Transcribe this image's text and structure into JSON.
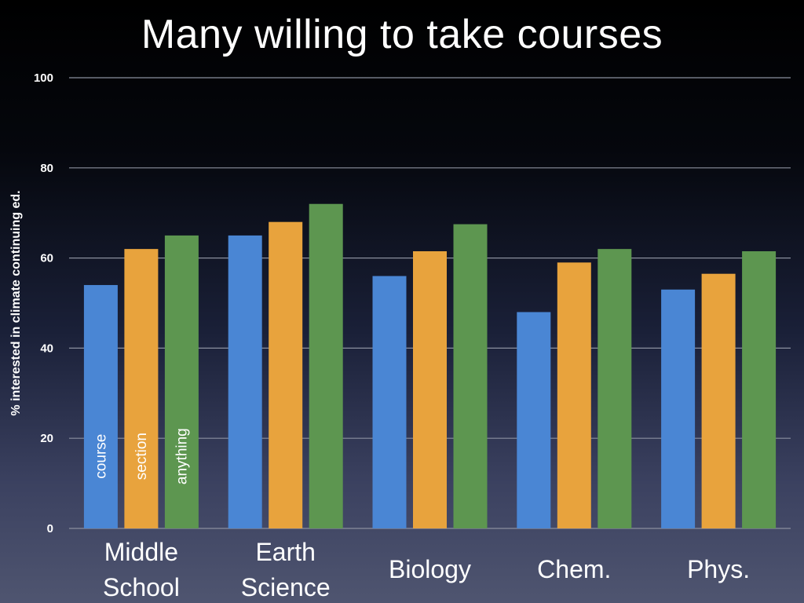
{
  "slide": {
    "title": "Many willing to take courses"
  },
  "chart_data": {
    "type": "bar",
    "title": "Many willing to take courses",
    "ylabel": "% interested in climate continuing ed.",
    "xlabel": "",
    "ylim": [
      0,
      100
    ],
    "yticks": [
      0,
      20,
      40,
      60,
      80,
      100
    ],
    "grid": true,
    "legend": "inside-first-group-bars",
    "categories": [
      [
        "Middle",
        "School"
      ],
      [
        "Earth",
        "Science"
      ],
      [
        "Biology"
      ],
      [
        "Chem."
      ],
      [
        "Phys."
      ]
    ],
    "series": [
      {
        "name": "course",
        "color": "#4a86d4",
        "values": [
          54,
          65,
          56,
          48,
          53
        ]
      },
      {
        "name": "section",
        "color": "#e8a33d",
        "values": [
          62,
          68,
          61.5,
          59,
          56.5
        ]
      },
      {
        "name": "anything",
        "color": "#5d9650",
        "values": [
          65,
          72,
          67.5,
          62,
          61.5
        ]
      }
    ]
  }
}
